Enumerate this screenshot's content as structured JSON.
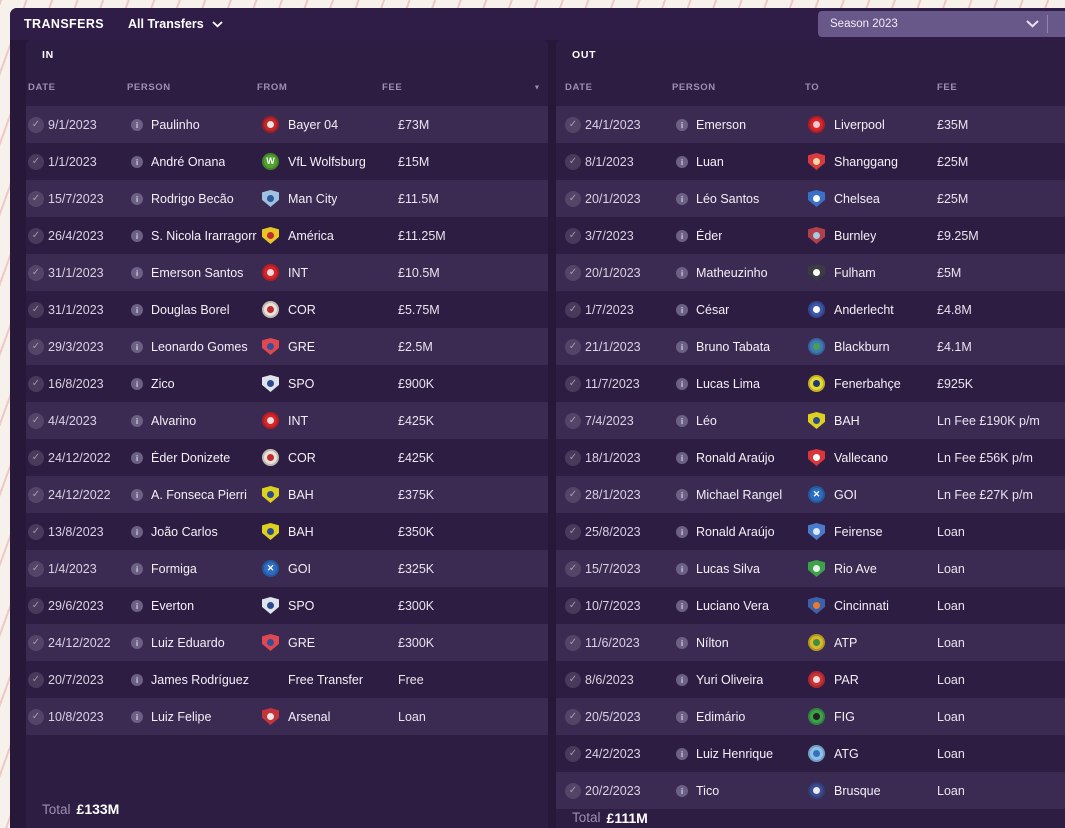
{
  "topbar": {
    "title": "TRANSFERS",
    "filter": "All Transfers",
    "season": "Season 2023"
  },
  "colors": {
    "panel_bg": "#2e1d43",
    "row_highlight": "#3b2a52",
    "topbar_bg": "#2f1c47",
    "season_select_bg": "#685889",
    "muted_text": "#9c90b2"
  },
  "in_panel": {
    "title": "IN",
    "columns": {
      "date": "DATE",
      "person": "PERSON",
      "club": "FROM",
      "fee": "FEE"
    },
    "total_label": "Total",
    "total_value": "£133M",
    "rows": [
      {
        "date": "9/1/2023",
        "person": "Paulinho",
        "club": "Bayer 04",
        "fee": "£73M",
        "badge": {
          "shape": "circle",
          "bg": "#c0272e",
          "fg": "#f0e3da",
          "glyph": "dot"
        }
      },
      {
        "date": "1/1/2023",
        "person": "André Onana",
        "club": "VfL Wolfsburg",
        "fee": "£15M",
        "badge": {
          "shape": "circle",
          "bg": "#51a32f",
          "fg": "#ffffff",
          "glyph": "W"
        }
      },
      {
        "date": "15/7/2023",
        "person": "Rodrigo Becão",
        "club": "Man City",
        "fee": "£11.5M",
        "badge": {
          "shape": "shield",
          "bg": "#9fc0de",
          "fg": "#2d5a9e",
          "glyph": "dot"
        }
      },
      {
        "date": "26/4/2023",
        "person": "S. Nicola Irarragorri",
        "club": "América",
        "fee": "£11.25M",
        "badge": {
          "shape": "shield",
          "bg": "#e7c623",
          "fg": "#c22a31",
          "glyph": "dot"
        }
      },
      {
        "date": "31/1/2023",
        "person": "Emerson Santos",
        "club": "INT",
        "fee": "£10.5M",
        "badge": {
          "shape": "circle",
          "bg": "#d8242b",
          "fg": "#f2dcdc",
          "glyph": "dot"
        }
      },
      {
        "date": "31/1/2023",
        "person": "Douglas Borel",
        "club": "COR",
        "fee": "£5.75M",
        "badge": {
          "shape": "circle",
          "bg": "#e9e2d8",
          "fg": "#c22a31",
          "glyph": "dot"
        }
      },
      {
        "date": "29/3/2023",
        "person": "Leonardo Gomes",
        "club": "GRE",
        "fee": "£2.5M",
        "badge": {
          "shape": "shield",
          "bg": "#e04750",
          "fg": "#33509b",
          "glyph": "dot"
        }
      },
      {
        "date": "16/8/2023",
        "person": "Zico",
        "club": "SPO",
        "fee": "£900K",
        "badge": {
          "shape": "shield",
          "bg": "#dfe4ec",
          "fg": "#2c4a8e",
          "glyph": "dot"
        }
      },
      {
        "date": "4/4/2023",
        "person": "Alvarino",
        "club": "INT",
        "fee": "£425K",
        "badge": {
          "shape": "circle",
          "bg": "#d8242b",
          "fg": "#f2dcdc",
          "glyph": "dot"
        }
      },
      {
        "date": "24/12/2022",
        "person": "Éder Donizete",
        "club": "COR",
        "fee": "£425K",
        "badge": {
          "shape": "circle",
          "bg": "#e9e2d8",
          "fg": "#c22a31",
          "glyph": "dot"
        }
      },
      {
        "date": "24/12/2022",
        "person": "A. Fonseca Pierri",
        "club": "BAH",
        "fee": "£375K",
        "badge": {
          "shape": "shield",
          "bg": "#ddd11f",
          "fg": "#2c4a8e",
          "glyph": "dot"
        }
      },
      {
        "date": "13/8/2023",
        "person": "João Carlos",
        "club": "BAH",
        "fee": "£350K",
        "badge": {
          "shape": "shield",
          "bg": "#ddd11f",
          "fg": "#2c4a8e",
          "glyph": "dot"
        }
      },
      {
        "date": "1/4/2023",
        "person": "Formiga",
        "club": "GOI",
        "fee": "£325K",
        "badge": {
          "shape": "circle",
          "bg": "#2d6cc0",
          "fg": "#ffffff",
          "glyph": "✕"
        }
      },
      {
        "date": "29/6/2023",
        "person": "Everton",
        "club": "SPO",
        "fee": "£300K",
        "badge": {
          "shape": "shield",
          "bg": "#dfe4ec",
          "fg": "#2c4a8e",
          "glyph": "dot"
        }
      },
      {
        "date": "24/12/2022",
        "person": "Luiz Eduardo",
        "club": "GRE",
        "fee": "£300K",
        "badge": {
          "shape": "shield",
          "bg": "#e04750",
          "fg": "#33509b",
          "glyph": "dot"
        }
      },
      {
        "date": "20/7/2023",
        "person": "James Rodríguez",
        "club": "Free Transfer",
        "fee": "Free",
        "badge": null
      },
      {
        "date": "10/8/2023",
        "person": "Luiz Felipe",
        "club": "Arsenal",
        "fee": "Loan",
        "badge": {
          "shape": "shield",
          "bg": "#c5333c",
          "fg": "#f2e6e6",
          "glyph": "dot"
        }
      }
    ]
  },
  "out_panel": {
    "title": "OUT",
    "columns": {
      "date": "DATE",
      "person": "PERSON",
      "club": "TO",
      "fee": "FEE"
    },
    "total_label": "Total",
    "total_value": "£111M",
    "rows": [
      {
        "date": "24/1/2023",
        "person": "Emerson",
        "club": "Liverpool",
        "fee": "£35M",
        "badge": {
          "shape": "circle",
          "bg": "#d8242b",
          "fg": "#f4c9c9",
          "glyph": "dot"
        }
      },
      {
        "date": "8/1/2023",
        "person": "Luan",
        "club": "Shanggang",
        "fee": "£25M",
        "badge": {
          "shape": "shield",
          "bg": "#d93a3e",
          "fg": "#f0d9a6",
          "glyph": "dot"
        }
      },
      {
        "date": "20/1/2023",
        "person": "Léo Santos",
        "club": "Chelsea",
        "fee": "£25M",
        "badge": {
          "shape": "shield",
          "bg": "#3a70c8",
          "fg": "#ffffff",
          "glyph": "dot"
        }
      },
      {
        "date": "3/7/2023",
        "person": "Éder",
        "club": "Burnley",
        "fee": "£9.25M",
        "badge": {
          "shape": "shield",
          "bg": "#b04148",
          "fg": "#a9c8e6",
          "glyph": "dot"
        }
      },
      {
        "date": "20/1/2023",
        "person": "Matheuzinho",
        "club": "Fulham",
        "fee": "£5M",
        "badge": {
          "shape": "shield",
          "bg": "#3b3b42",
          "fg": "#ffffff",
          "glyph": "dot"
        }
      },
      {
        "date": "1/7/2023",
        "person": "César",
        "club": "Anderlecht",
        "fee": "£4.8M",
        "badge": {
          "shape": "circle",
          "bg": "#3c57aa",
          "fg": "#ffffff",
          "glyph": "dot"
        }
      },
      {
        "date": "21/1/2023",
        "person": "Bruno Tabata",
        "club": "Blackburn",
        "fee": "£4.1M",
        "badge": {
          "shape": "circle",
          "bg": "#4079ba",
          "fg": "#47a24a",
          "glyph": "dot"
        }
      },
      {
        "date": "11/7/2023",
        "person": "Lucas Lima",
        "club": "Fenerbahçe",
        "fee": "£925K",
        "badge": {
          "shape": "circle",
          "bg": "#e9da33",
          "fg": "#1e3a70",
          "glyph": "dot"
        }
      },
      {
        "date": "7/4/2023",
        "person": "Léo",
        "club": "BAH",
        "fee": "Ln Fee £190K p/m",
        "badge": {
          "shape": "shield",
          "bg": "#ddd11f",
          "fg": "#2c4a8e",
          "glyph": "dot"
        }
      },
      {
        "date": "18/1/2023",
        "person": "Ronald Araújo",
        "club": "Vallecano",
        "fee": "Ln Fee £56K p/m",
        "badge": {
          "shape": "shield",
          "bg": "#da353b",
          "fg": "#ffffff",
          "glyph": "dot"
        }
      },
      {
        "date": "28/1/2023",
        "person": "Michael Rangel",
        "club": "GOI",
        "fee": "Ln Fee £27K p/m",
        "badge": {
          "shape": "circle",
          "bg": "#2d6cc0",
          "fg": "#ffffff",
          "glyph": "✕"
        }
      },
      {
        "date": "25/8/2023",
        "person": "Ronald Araújo",
        "club": "Feirense",
        "fee": "Loan",
        "badge": {
          "shape": "shield",
          "bg": "#4a7bca",
          "fg": "#dfe9f5",
          "glyph": "dot"
        }
      },
      {
        "date": "15/7/2023",
        "person": "Lucas Silva",
        "club": "Rio Ave",
        "fee": "Loan",
        "badge": {
          "shape": "shield",
          "bg": "#3da04a",
          "fg": "#e9f2e9",
          "glyph": "dot"
        }
      },
      {
        "date": "10/7/2023",
        "person": "Luciano Vera",
        "club": "Cincinnati",
        "fee": "Loan",
        "badge": {
          "shape": "shield",
          "bg": "#3c60aa",
          "fg": "#e87b2d",
          "glyph": "dot"
        }
      },
      {
        "date": "11/6/2023",
        "person": "Nílton",
        "club": "ATP",
        "fee": "Loan",
        "badge": {
          "shape": "circle",
          "bg": "#d9b92a",
          "fg": "#3d8f41",
          "glyph": "dot"
        }
      },
      {
        "date": "8/6/2023",
        "person": "Yuri Oliveira",
        "club": "PAR",
        "fee": "Loan",
        "badge": {
          "shape": "circle",
          "bg": "#cd3139",
          "fg": "#f1dede",
          "glyph": "dot"
        }
      },
      {
        "date": "20/5/2023",
        "person": "Edimário",
        "club": "FIG",
        "fee": "Loan",
        "badge": {
          "shape": "circle",
          "bg": "#3da04a",
          "fg": "#22221f",
          "glyph": "dot"
        }
      },
      {
        "date": "24/2/2023",
        "person": "Luiz Henrique",
        "club": "ATG",
        "fee": "Loan",
        "badge": {
          "shape": "circle",
          "bg": "#8cc2e9",
          "fg": "#3a6fc0",
          "glyph": "dot"
        }
      },
      {
        "date": "20/2/2023",
        "person": "Tico",
        "club": "Brusque",
        "fee": "Loan",
        "badge": {
          "shape": "circle",
          "bg": "#3b4b90",
          "fg": "#e9e9f1",
          "glyph": "dot"
        }
      }
    ]
  }
}
